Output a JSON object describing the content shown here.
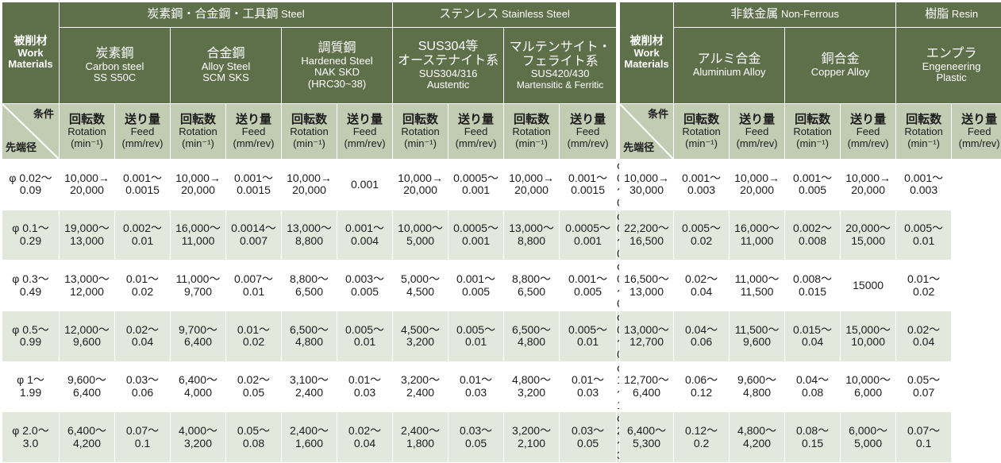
{
  "headers": {
    "steel_group": {
      "jp": "炭素鋼・合金鋼・工具鋼",
      "en": "Steel"
    },
    "stainless_group": {
      "jp": "ステンレス",
      "en": "Stainless Steel"
    },
    "nonferrous_group": {
      "jp": "非鉄金属",
      "en": "Non-Ferrous"
    },
    "resin_group": {
      "jp": "樹脂",
      "en": "Resin"
    },
    "work_material": {
      "jp": "被削材",
      "en1": "Work",
      "en2": "Materials"
    },
    "materials": [
      {
        "jp": "炭素鋼",
        "l1": "Carbon steel",
        "l2": "SS S50C",
        "l3": ""
      },
      {
        "jp": "合金鋼",
        "l1": "Alloy Steel",
        "l2": "SCM SKS",
        "l3": ""
      },
      {
        "jp": "調質鋼",
        "l1": "Hardened Steel",
        "l2": "NAK SKD",
        "l3": "(HRC30~38)"
      },
      {
        "jp": "SUS304等",
        "jp2": "オーステナイト系",
        "l1": "SUS304/316",
        "l2": "Austentic"
      },
      {
        "jp": "マルテンサイト・",
        "jp2": "フェライト系",
        "l1": "SUS420/430",
        "l2": "Martensitic & Ferritic"
      },
      {
        "jp": "アルミ合金",
        "l1": "Aluminium Alloy"
      },
      {
        "jp": "銅合金",
        "l1": "Copper Alloy"
      },
      {
        "jp": "エンプラ",
        "l1": "Engeneering",
        "l2": "Plastic"
      }
    ],
    "condition_label": "条件",
    "tip_label": "先端径",
    "rotation": {
      "jp": "回転数",
      "en": "Rotation",
      "unit": "(min⁻¹)"
    },
    "feed": {
      "jp": "送り量",
      "en": "Feed",
      "unit": "(mm/rev)"
    }
  },
  "rows": [
    {
      "dia": [
        "φ 0.02～",
        "0.09"
      ],
      "left": [
        [
          "10,000→",
          "20,000"
        ],
        [
          "0.001～",
          "0.0015"
        ],
        [
          "10,000→",
          "20,000"
        ],
        [
          "0.001～",
          "0.0015"
        ],
        [
          "10,000→",
          "20,000"
        ],
        [
          "0.001"
        ],
        [
          "10,000→",
          "20,000"
        ],
        [
          "0.0005～",
          "0.001"
        ],
        [
          "10,000→",
          "20,000"
        ],
        [
          "0.001～",
          "0.0015"
        ]
      ],
      "right": [
        [
          "10,000→",
          "30,000"
        ],
        [
          "0.001～",
          "0.003"
        ],
        [
          "10,000→",
          "20,000"
        ],
        [
          "0.001～",
          "0.005"
        ],
        [
          "10,000→",
          "20,000"
        ],
        [
          "0.001～",
          "0.003"
        ]
      ]
    },
    {
      "dia": [
        "φ 0.1～",
        "0.29"
      ],
      "left": [
        [
          "19,000～",
          "13,000"
        ],
        [
          "0.002～",
          "0.01"
        ],
        [
          "16,000～",
          "11,000"
        ],
        [
          "0.0014～",
          "0.007"
        ],
        [
          "13,000～",
          "8,800"
        ],
        [
          "0.001～",
          "0.004"
        ],
        [
          "10,000～",
          "5,000"
        ],
        [
          "0.0005～",
          "0.001"
        ],
        [
          "13,000～",
          "8,800"
        ],
        [
          "0.0005～",
          "0.001"
        ]
      ],
      "right": [
        [
          "22,200～",
          "16,500"
        ],
        [
          "0.005～",
          "0.02"
        ],
        [
          "16,000～",
          "11,000"
        ],
        [
          "0.002～",
          "0.008"
        ],
        [
          "20,000～",
          "15,000"
        ],
        [
          "0.005～",
          "0.01"
        ]
      ]
    },
    {
      "dia": [
        "φ 0.3～",
        "0.49"
      ],
      "left": [
        [
          "13,000～",
          "12,000"
        ],
        [
          "0.01～",
          "0.02"
        ],
        [
          "11,000～",
          "9,700"
        ],
        [
          "0.007～",
          "0.01"
        ],
        [
          "8,800～",
          "6,500"
        ],
        [
          "0.003～",
          "0.005"
        ],
        [
          "5,000～",
          "4,500"
        ],
        [
          "0.001～",
          "0.005"
        ],
        [
          "8,800～",
          "6,500"
        ],
        [
          "0.001～",
          "0.005"
        ]
      ],
      "right": [
        [
          "16,500～",
          "13,000"
        ],
        [
          "0.02～",
          "0.04"
        ],
        [
          "11,000～",
          "11,500"
        ],
        [
          "0.008～",
          "0.015"
        ],
        [
          "15000"
        ],
        [
          "0.01～",
          "0.02"
        ]
      ]
    },
    {
      "dia": [
        "φ 0.5～",
        "0.99"
      ],
      "left": [
        [
          "12,000～",
          "9,600"
        ],
        [
          "0.02～",
          "0.04"
        ],
        [
          "9,700～",
          "6,400"
        ],
        [
          "0.01～",
          "0.02"
        ],
        [
          "6,500～",
          "4,800"
        ],
        [
          "0.005～",
          "0.01"
        ],
        [
          "4,500～",
          "3,200"
        ],
        [
          "0.005～",
          "0.01"
        ],
        [
          "6,500～",
          "4,800"
        ],
        [
          "0.005～",
          "0.01"
        ]
      ],
      "right": [
        [
          "13,000～",
          "12,700"
        ],
        [
          "0.04～",
          "0.06"
        ],
        [
          "11,500～",
          "9,600"
        ],
        [
          "0.015～",
          "0.04"
        ],
        [
          "15,000～",
          "10,000"
        ],
        [
          "0.02～",
          "0.04"
        ]
      ]
    },
    {
      "dia": [
        "φ 1～",
        "1.99"
      ],
      "left": [
        [
          "9,600～",
          "6,400"
        ],
        [
          "0.03～",
          "0.06"
        ],
        [
          "6,400～",
          "4,000"
        ],
        [
          "0.02～",
          "0.05"
        ],
        [
          "3,100～",
          "2,400"
        ],
        [
          "0.01～",
          "0.03"
        ],
        [
          "3,200～",
          "2,400"
        ],
        [
          "0.01～",
          "0.03"
        ],
        [
          "4,800～",
          "3,200"
        ],
        [
          "0.01～",
          "0.03"
        ]
      ],
      "right": [
        [
          "12,700～",
          "6,400"
        ],
        [
          "0.06～",
          "0.12"
        ],
        [
          "9,600～",
          "4,800"
        ],
        [
          "0.04～",
          "0.08"
        ],
        [
          "10,000～",
          "6,000"
        ],
        [
          "0.05～",
          "0.07"
        ]
      ]
    },
    {
      "dia": [
        "φ 2.0～",
        "3.0"
      ],
      "left": [
        [
          "6,400～",
          "4,200"
        ],
        [
          "0.07～",
          "0.1"
        ],
        [
          "4,000～",
          "3,200"
        ],
        [
          "0.05～",
          "0.08"
        ],
        [
          "2,400～",
          "1,600"
        ],
        [
          "0.02～",
          "0.04"
        ],
        [
          "2,400～",
          "1,800"
        ],
        [
          "0.03～",
          "0.05"
        ],
        [
          "3,200～",
          "2,100"
        ],
        [
          "0.03～",
          "0.05"
        ]
      ],
      "right": [
        [
          "6,400～",
          "5,300"
        ],
        [
          "0.12～",
          "0.2"
        ],
        [
          "4,800～",
          "4,200"
        ],
        [
          "0.08～",
          "0.15"
        ],
        [
          "6,000～",
          "5,000"
        ],
        [
          "0.07～",
          "0.1"
        ]
      ]
    }
  ]
}
